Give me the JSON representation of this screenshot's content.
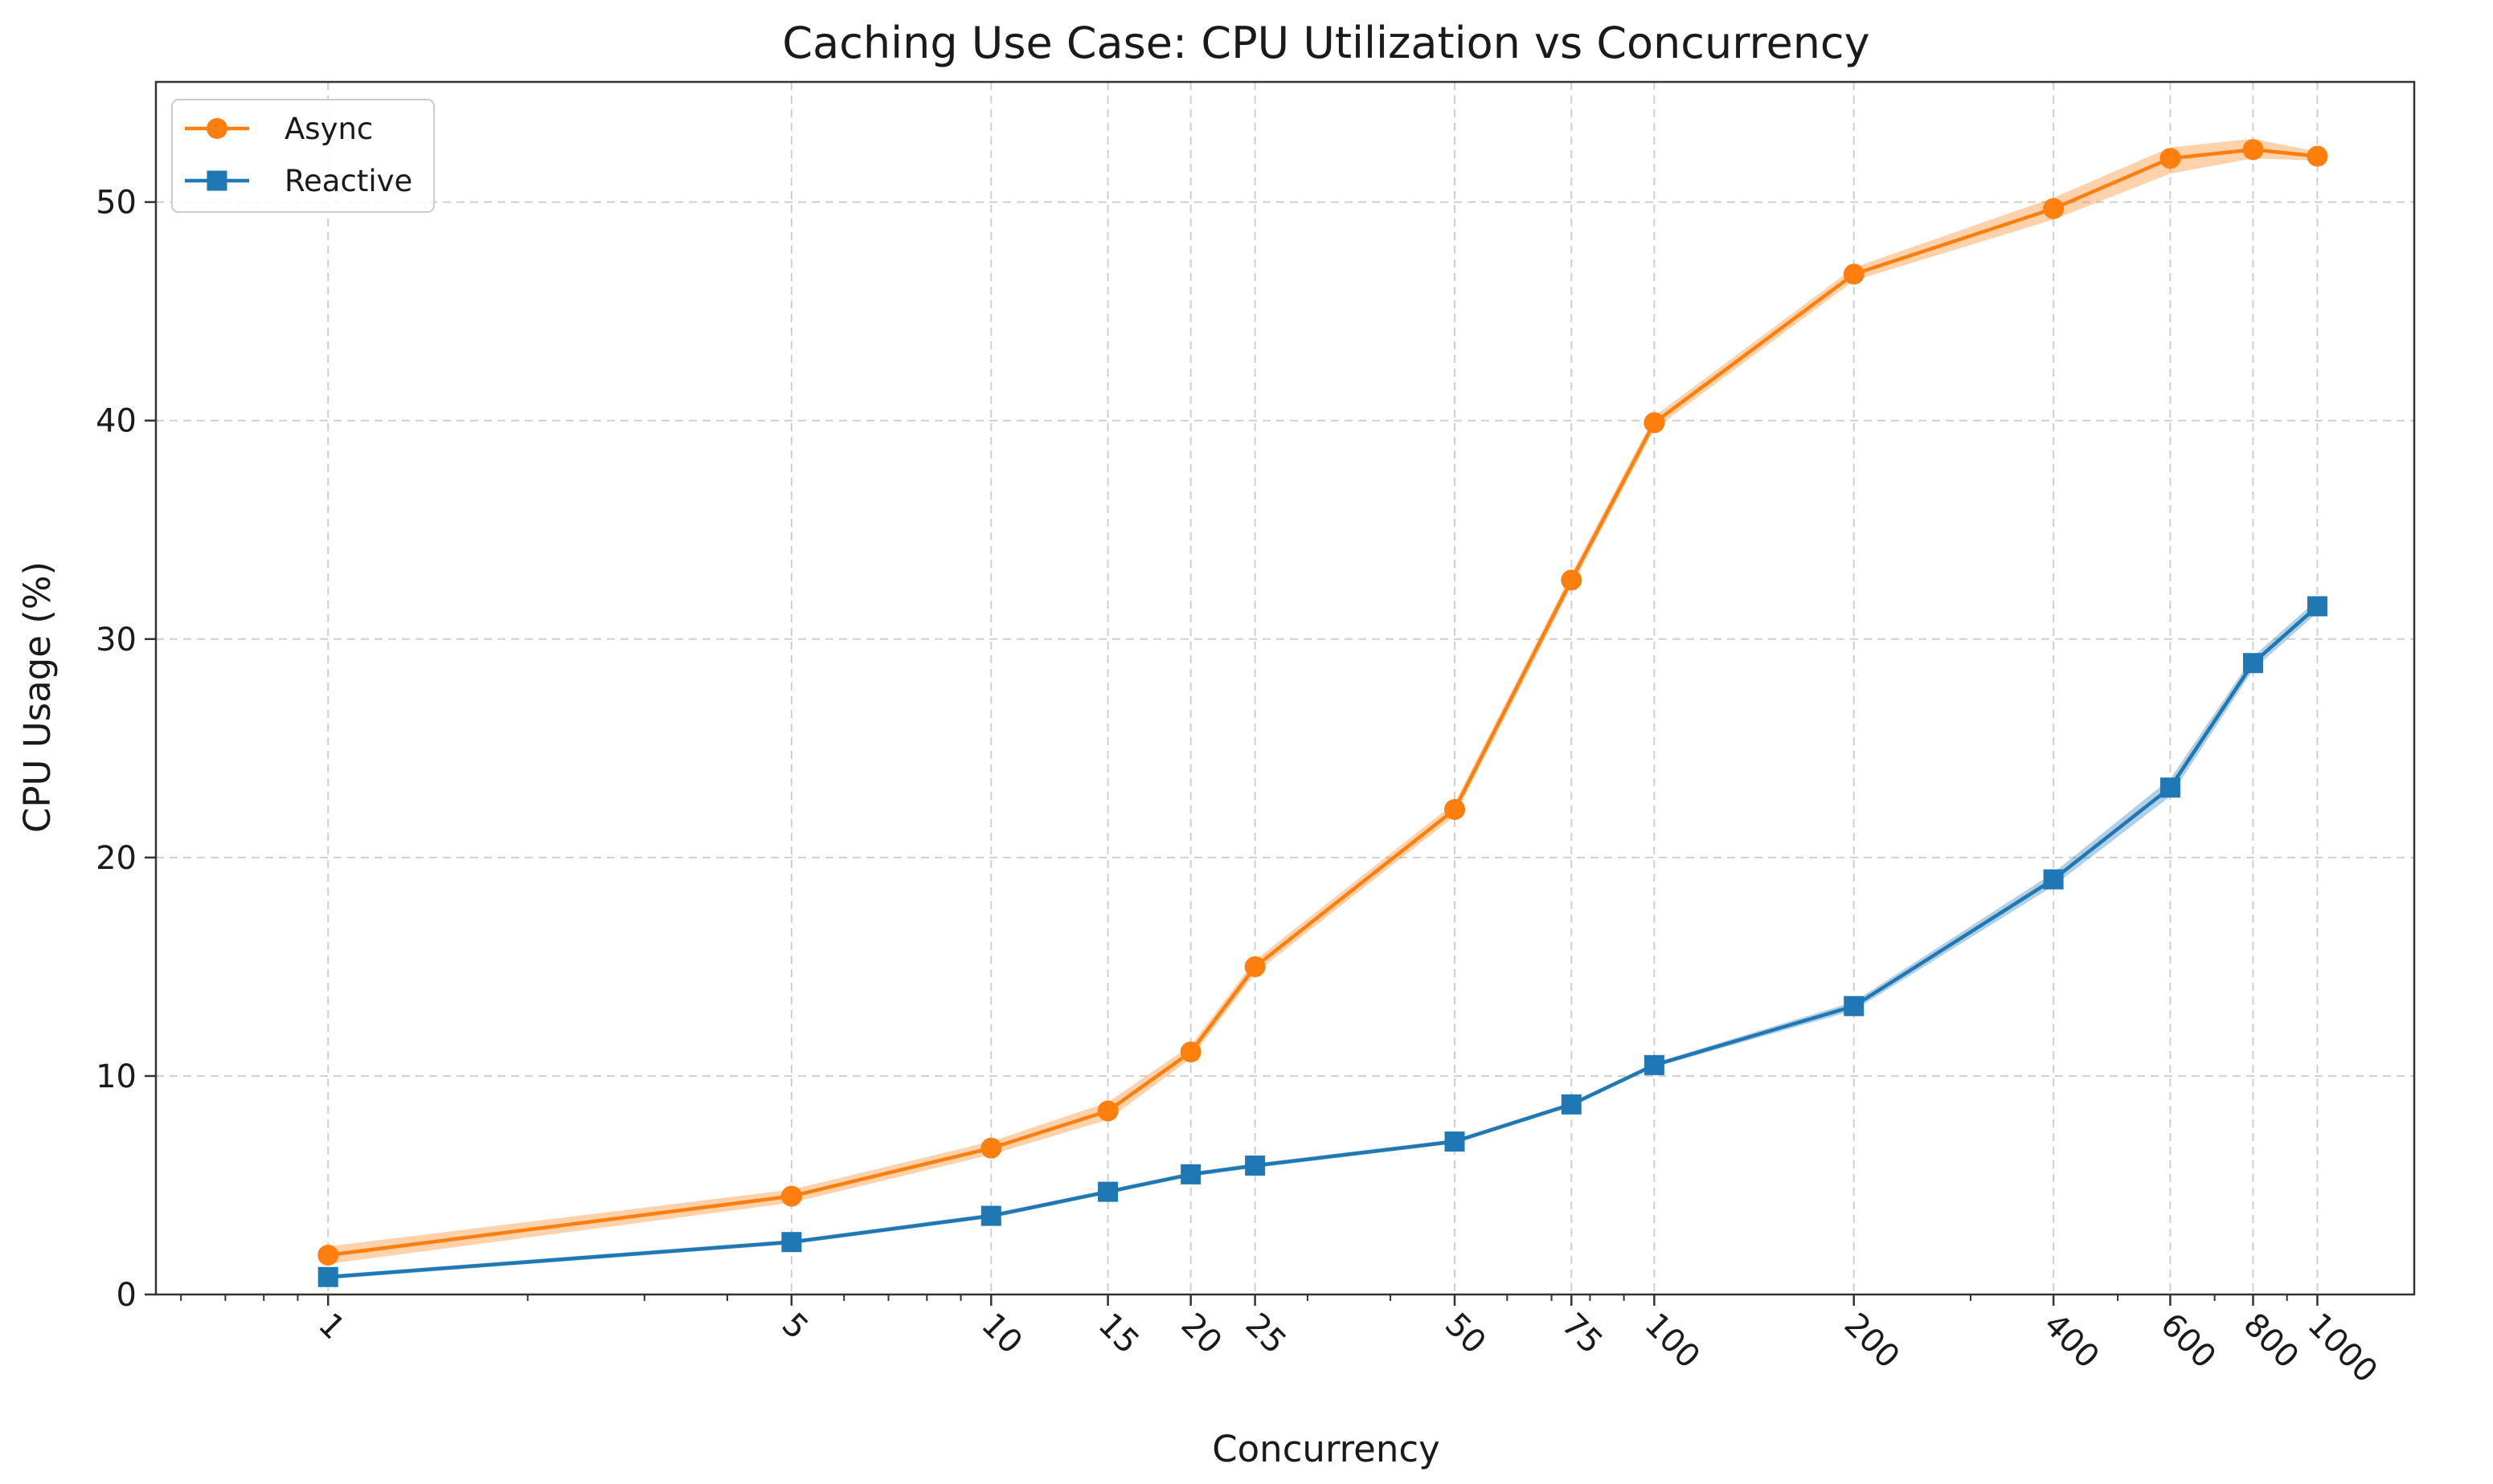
{
  "chart_data": {
    "type": "line",
    "title": "Caching Use Case: CPU Utilization vs Concurrency",
    "xlabel": "Concurrency",
    "ylabel": "CPU Usage (%)",
    "xscale": "log",
    "x": [
      1,
      5,
      10,
      15,
      20,
      25,
      50,
      75,
      100,
      200,
      400,
      600,
      800,
      1000
    ],
    "x_tick_labels": [
      "1",
      "5",
      "10",
      "15",
      "20",
      "25",
      "50",
      "75",
      "100",
      "200",
      "400",
      "600",
      "800",
      "1000"
    ],
    "xlim": [
      0.55,
      1400
    ],
    "ylim": [
      0,
      55.5
    ],
    "y_ticks": [
      0,
      10,
      20,
      30,
      40,
      50
    ],
    "y_tick_labels": [
      "0",
      "10",
      "20",
      "30",
      "40",
      "50"
    ],
    "grid": true,
    "legend_position": "upper-left",
    "series": [
      {
        "name": "Async",
        "color": "#ff7f0e",
        "marker": "circle",
        "values": [
          1.8,
          4.5,
          6.7,
          8.4,
          11.1,
          15.0,
          22.2,
          32.7,
          39.9,
          46.7,
          49.7,
          52.0,
          52.4,
          52.1
        ],
        "band_lower": [
          1.4,
          4.2,
          6.4,
          8.0,
          10.8,
          14.7,
          21.9,
          32.4,
          39.6,
          46.4,
          49.2,
          51.3,
          52.0,
          51.9
        ],
        "band_upper": [
          2.2,
          4.8,
          7.0,
          8.8,
          11.4,
          15.3,
          22.5,
          33.0,
          40.2,
          47.0,
          50.2,
          52.5,
          52.9,
          52.3
        ]
      },
      {
        "name": "Reactive",
        "color": "#1f77b4",
        "marker": "square",
        "values": [
          0.8,
          2.4,
          3.6,
          4.7,
          5.5,
          5.9,
          7.0,
          8.7,
          10.5,
          13.2,
          19.0,
          23.2,
          28.9,
          31.5
        ],
        "band_lower": [
          0.7,
          2.3,
          3.5,
          4.6,
          5.4,
          5.8,
          6.9,
          8.6,
          10.4,
          13.0,
          18.7,
          22.8,
          28.6,
          31.2
        ],
        "band_upper": [
          0.9,
          2.5,
          3.7,
          4.8,
          5.6,
          6.0,
          7.1,
          8.8,
          10.6,
          13.4,
          19.3,
          23.6,
          29.2,
          31.8
        ]
      }
    ]
  }
}
